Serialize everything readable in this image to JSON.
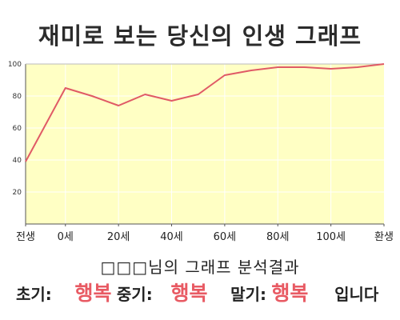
{
  "page": {
    "title": "재미로 보는 당신의 인생 그래프",
    "analysis_caption": "□□□님의 그래프 분석결과",
    "results": {
      "early_label": "초기:",
      "early_value": "행복",
      "middle_label": "중기:",
      "middle_value": "행복",
      "late_label": "말기:",
      "late_value": "행복",
      "ending": "입니다"
    }
  },
  "colors": {
    "line": "#e05a66",
    "fill": "#ffffc4",
    "grid": "#ffffff",
    "highlight": "#e85a63"
  },
  "chart_data": {
    "type": "area",
    "title": "재미로 보는 당신의 인생 그래프",
    "xlabel": "",
    "ylabel": "",
    "x": [
      -15,
      0,
      10,
      20,
      30,
      40,
      50,
      60,
      70,
      80,
      90,
      100,
      110,
      120
    ],
    "values": [
      39,
      85,
      80,
      74,
      81,
      77,
      81,
      93,
      96,
      98,
      98,
      97,
      98,
      100
    ],
    "xticks": [
      {
        "x": -15,
        "label": "전생"
      },
      {
        "x": 0,
        "label": "0세"
      },
      {
        "x": 20,
        "label": "20세"
      },
      {
        "x": 40,
        "label": "40세"
      },
      {
        "x": 60,
        "label": "60세"
      },
      {
        "x": 80,
        "label": "80세"
      },
      {
        "x": 100,
        "label": "100세"
      },
      {
        "x": 120,
        "label": "환생"
      }
    ],
    "yticks": [
      20,
      40,
      60,
      80,
      100
    ],
    "xlim": [
      -15,
      120
    ],
    "ylim": [
      0,
      100
    ],
    "grid": true,
    "legend": "none"
  }
}
